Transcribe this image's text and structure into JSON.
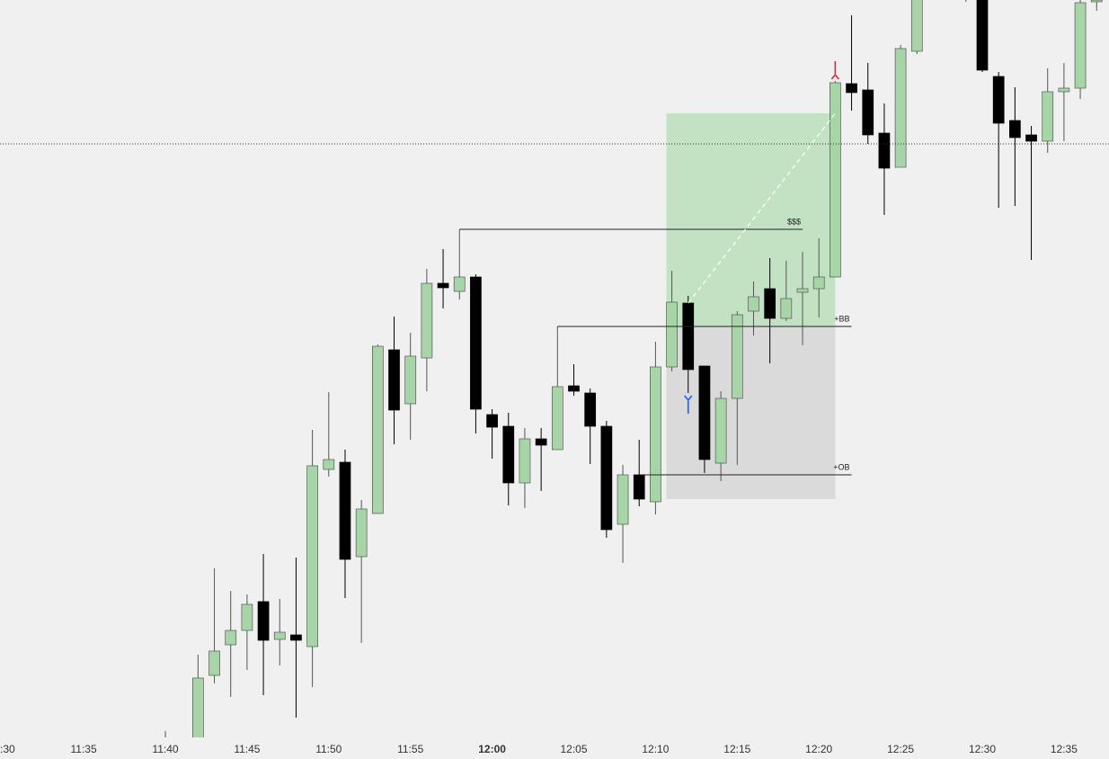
{
  "chart_data": {
    "type": "candlestick",
    "categories": [
      ":30",
      null,
      null,
      null,
      null,
      "11:35",
      null,
      null,
      null,
      null,
      "11:40",
      null,
      null,
      null,
      null,
      "11:45",
      null,
      null,
      null,
      null,
      "11:50",
      null,
      null,
      null,
      null,
      "11:55",
      null,
      null,
      null,
      null,
      "12:00",
      null,
      null,
      null,
      null,
      "12:05",
      null,
      null,
      null,
      null,
      "12:10",
      null,
      null,
      null,
      null,
      "12:15",
      null,
      null,
      null,
      null,
      "12:20",
      null,
      null,
      null,
      null,
      "12:25",
      null,
      null,
      null,
      null,
      "12:30",
      null,
      null,
      null,
      null,
      "12:35",
      null,
      null
    ],
    "open": [
      null,
      null,
      null,
      null,
      null,
      null,
      null,
      null,
      null,
      null,
      -25,
      -40,
      -20,
      69,
      103,
      119,
      151,
      109,
      114,
      101,
      298,
      306,
      201,
      249,
      431,
      371,
      422,
      505,
      496,
      512,
      359,
      346,
      283,
      332,
      320,
      391,
      383,
      346,
      237,
      292,
      262,
      412,
      483,
      413,
      305,
      377,
      474,
      499,
      466,
      495,
      499,
      512,
      727,
      720,
      672,
      634,
      763,
      870,
      840,
      840,
      850,
      735,
      686,
      670,
      663,
      718,
      722,
      818
    ],
    "high": [
      null,
      null,
      null,
      null,
      null,
      null,
      null,
      null,
      null,
      null,
      7,
      -5,
      92,
      188,
      163,
      159,
      204,
      154,
      200,
      342,
      384,
      320,
      264,
      437,
      468,
      450,
      521,
      543,
      565,
      515,
      365,
      361,
      344,
      344,
      457,
      415,
      388,
      352,
      303,
      331,
      440,
      519,
      491,
      413,
      385,
      474,
      507,
      533,
      530,
      540,
      555,
      730,
      803,
      750,
      705,
      770,
      860,
      880,
      890,
      860,
      860,
      740,
      723,
      680,
      744,
      750,
      825,
      830
    ],
    "low": [
      null,
      null,
      null,
      null,
      null,
      null,
      null,
      null,
      null,
      null,
      -30,
      -50,
      -30,
      60,
      45,
      75,
      47,
      80,
      22,
      56,
      290,
      155,
      105,
      249,
      326,
      331,
      385,
      477,
      487,
      338,
      310,
      258,
      255,
      274,
      320,
      380,
      304,
      222,
      194,
      257,
      248,
      407,
      383,
      294,
      285,
      303,
      447,
      416,
      463,
      436,
      467,
      512,
      697,
      660,
      581,
      634,
      760,
      830,
      825,
      818,
      740,
      589,
      591,
      531,
      650,
      663,
      710,
      808
    ],
    "close": [
      null,
      null,
      null,
      null,
      null,
      null,
      null,
      null,
      null,
      null,
      -5,
      -15,
      66,
      96,
      119,
      148,
      108,
      117,
      108,
      302,
      309,
      198,
      254,
      435,
      364,
      424,
      505,
      500,
      512,
      365,
      345,
      283,
      332,
      325,
      390,
      385,
      346,
      231,
      292,
      265,
      412,
      484,
      409,
      309,
      377,
      470,
      490,
      466,
      488,
      499,
      512,
      728,
      717,
      670,
      633,
      766,
      840,
      840,
      860,
      850,
      742,
      683,
      667,
      663,
      718,
      722,
      817,
      820
    ],
    "up_color": "#a8d5a8",
    "down_color": "#000000",
    "ylim": [
      0,
      820
    ],
    "reference_line": 660,
    "levels": [
      {
        "label": "$$$",
        "value": 565
      },
      {
        "label": "+BB",
        "value": 457
      },
      {
        "label": "+OB",
        "value": 292
      }
    ],
    "position": {
      "target": 694,
      "entry": 457,
      "stop": 265
    }
  }
}
